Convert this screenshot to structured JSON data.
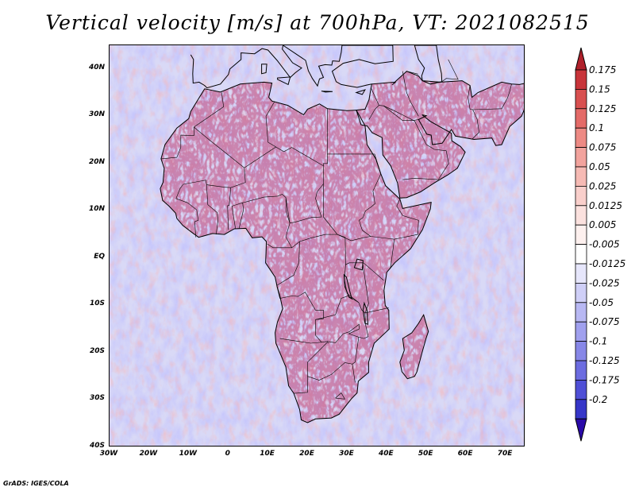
{
  "title": "Vertical velocity [m/s] at 700hPa, VT: 2021082515",
  "credit": "GrADS: IGES/COLA",
  "map": {
    "region": "Africa",
    "lon_range": [
      -30,
      75
    ],
    "lat_range": [
      -40,
      45
    ],
    "y_ticks": [
      {
        "lat": 40,
        "label": "40N"
      },
      {
        "lat": 30,
        "label": "30N"
      },
      {
        "lat": 20,
        "label": "20N"
      },
      {
        "lat": 10,
        "label": "10N"
      },
      {
        "lat": 0,
        "label": "EQ"
      },
      {
        "lat": -10,
        "label": "10S"
      },
      {
        "lat": -20,
        "label": "20S"
      },
      {
        "lat": -30,
        "label": "30S"
      },
      {
        "lat": -40,
        "label": "40S"
      }
    ],
    "x_ticks": [
      {
        "lon": -30,
        "label": "30W"
      },
      {
        "lon": -20,
        "label": "20W"
      },
      {
        "lon": -10,
        "label": "10W"
      },
      {
        "lon": 0,
        "label": "0"
      },
      {
        "lon": 10,
        "label": "10E"
      },
      {
        "lon": 20,
        "label": "20E"
      },
      {
        "lon": 30,
        "label": "30E"
      },
      {
        "lon": 40,
        "label": "40E"
      },
      {
        "lon": 50,
        "label": "50E"
      },
      {
        "lon": 60,
        "label": "60E"
      },
      {
        "lon": 70,
        "label": "70E"
      }
    ]
  },
  "colorbar": {
    "top_color": "#b0212b",
    "bottom_color": "#2a0aa8",
    "levels": [
      {
        "label": "0.175",
        "color": "#c8343a"
      },
      {
        "label": "0.15",
        "color": "#d85050"
      },
      {
        "label": "0.125",
        "color": "#e46b68"
      },
      {
        "label": "0.1",
        "color": "#ed8a84"
      },
      {
        "label": "0.075",
        "color": "#f2a39d"
      },
      {
        "label": "0.05",
        "color": "#f6bab4"
      },
      {
        "label": "0.025",
        "color": "#f9cfcb"
      },
      {
        "label": "0.0125",
        "color": "#fbe1de"
      },
      {
        "label": "0.005",
        "color": "#fdf0ee"
      },
      {
        "label": "-0.005",
        "color": "#ffffff"
      },
      {
        "label": "-0.0125",
        "color": "#e6e6fb"
      },
      {
        "label": "-0.025",
        "color": "#cfcff7"
      },
      {
        "label": "-0.05",
        "color": "#b8b8f3"
      },
      {
        "label": "-0.075",
        "color": "#a0a0ee"
      },
      {
        "label": "-0.1",
        "color": "#8787e7"
      },
      {
        "label": "-0.125",
        "color": "#6c6ce0"
      },
      {
        "label": "-0.175",
        "color": "#4f4fd6"
      },
      {
        "label": "-0.2",
        "color": "#3636c8"
      }
    ]
  }
}
